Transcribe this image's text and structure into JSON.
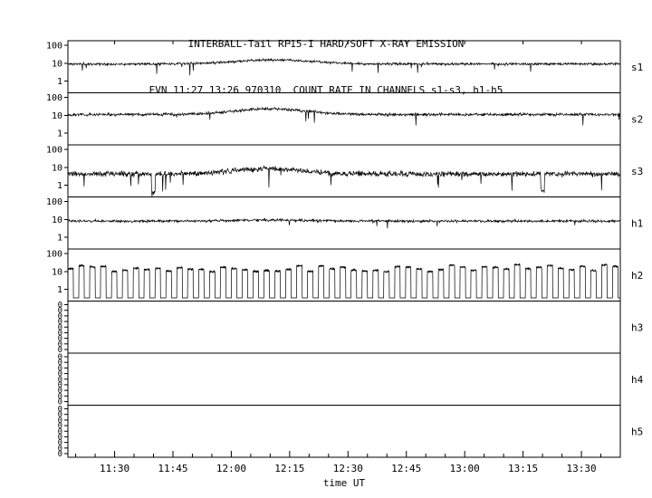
{
  "chart_data": {
    "type": "line",
    "title": "INTERBALL-Tail RF15-I HARD/SOFT X-RAY EMISSION",
    "subtitle": "EVN 11:27 13:26 970310  COUNT RATE IN CHANNELS s1-s3, h1-h5",
    "xlabel": "time UT",
    "x_start_min": 678,
    "x_end_min": 820,
    "x_ticks": [
      {
        "label": "11:30",
        "min": 690
      },
      {
        "label": "11:45",
        "min": 705
      },
      {
        "label": "12:00",
        "min": 720
      },
      {
        "label": "12:15",
        "min": 735
      },
      {
        "label": "12:30",
        "min": 750
      },
      {
        "label": "12:45",
        "min": 765
      },
      {
        "label": "13:00",
        "min": 780
      },
      {
        "label": "13:15",
        "min": 795
      },
      {
        "label": "13:30",
        "min": 810
      }
    ],
    "y_log_range": [
      0.22,
      180
    ],
    "legend": "none",
    "grid": false,
    "panels": [
      {
        "label": "s1",
        "scale": "log",
        "yticks": [
          "100",
          "10",
          "1"
        ],
        "series": {
          "kind": "noisy",
          "seed": 11,
          "baseline": 9,
          "noise_dex": 0.1,
          "spike_prob": 0.004,
          "spike_dex": 0.45,
          "bump": {
            "center_min": 731,
            "amp": 1.7,
            "width_min": 10
          }
        }
      },
      {
        "label": "s2",
        "scale": "log",
        "yticks": [
          "100",
          "10",
          "1"
        ],
        "series": {
          "kind": "noisy",
          "seed": 22,
          "baseline": 11,
          "noise_dex": 0.12,
          "spike_prob": 0.005,
          "spike_dex": 0.5,
          "bump": {
            "center_min": 730,
            "amp": 2.1,
            "width_min": 9
          }
        }
      },
      {
        "label": "s3",
        "scale": "log",
        "yticks": [
          "100",
          "10",
          "1"
        ],
        "series": {
          "kind": "noisy",
          "seed": 33,
          "baseline": 4.2,
          "noise_dex": 0.22,
          "spike_prob": 0.012,
          "spike_dex": 0.8,
          "bump": {
            "center_min": 729,
            "amp": 2.0,
            "width_min": 9
          },
          "spikes": [
            {
              "min": 700,
              "depth_factor": 0.1
            },
            {
              "min": 800,
              "depth_factor": 0.12
            }
          ]
        }
      },
      {
        "label": "h1",
        "scale": "log",
        "yticks": [
          "100",
          "10",
          "1"
        ],
        "series": {
          "kind": "noisy",
          "seed": 44,
          "baseline": 8,
          "noise_dex": 0.11,
          "spike_prob": 0.004,
          "spike_dex": 0.4,
          "bump": {
            "center_min": 730,
            "amp": 1.15,
            "width_min": 10
          }
        }
      },
      {
        "label": "h2",
        "scale": "log",
        "yticks": [
          "100",
          "10",
          "1"
        ],
        "series": {
          "kind": "comb",
          "seed": 55,
          "period_min": 2.8,
          "duty_high": 0.5,
          "high": 15,
          "low": 0.33,
          "high_var_dex": 0.4,
          "noise_dex": 0.07
        }
      },
      {
        "label": "h3",
        "scale": "zeros",
        "yticks": [
          "0",
          "0",
          "0",
          "0",
          "0",
          "0",
          "0",
          "0",
          "0"
        ],
        "series": {
          "kind": "none"
        }
      },
      {
        "label": "h4",
        "scale": "zeros",
        "yticks": [
          "0",
          "0",
          "0",
          "0",
          "0",
          "0",
          "0",
          "0",
          "0"
        ],
        "series": {
          "kind": "none"
        }
      },
      {
        "label": "h5",
        "scale": "zeros",
        "yticks": [
          "0",
          "0",
          "0",
          "0",
          "0",
          "0",
          "0",
          "0",
          "0"
        ],
        "series": {
          "kind": "none"
        }
      }
    ]
  }
}
